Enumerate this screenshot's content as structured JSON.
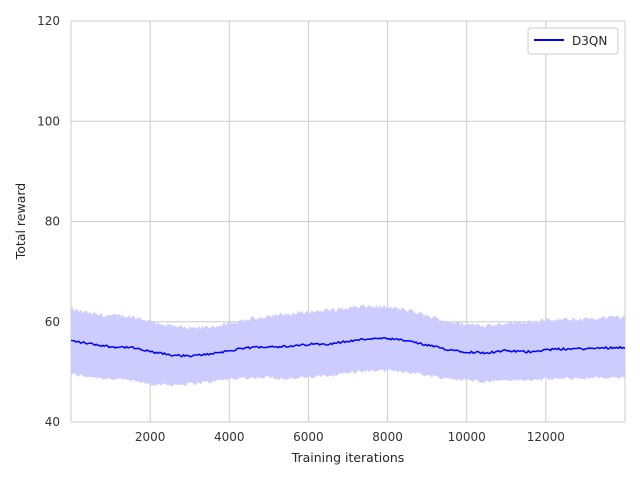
{
  "chart_data": {
    "type": "line",
    "xlabel": "Training iterations",
    "ylabel": "Total reward",
    "xlim": [
      0,
      14000
    ],
    "ylim": [
      40,
      120
    ],
    "xticks": [
      2000,
      4000,
      6000,
      8000,
      10000,
      12000
    ],
    "yticks": [
      40,
      60,
      80,
      100,
      120
    ],
    "grid": true,
    "legend_position": "top-right",
    "series": [
      {
        "name": "D3QN",
        "color": "#0000ff",
        "band_color": "#ccccff",
        "x": [
          0,
          500,
          1000,
          1500,
          2000,
          2500,
          3000,
          3500,
          4000,
          4500,
          5000,
          5500,
          6000,
          6500,
          7000,
          7500,
          8000,
          8500,
          9000,
          9500,
          10000,
          10500,
          11000,
          11500,
          12000,
          12500,
          13000,
          13500,
          14000
        ],
        "mean": [
          56.2,
          55.6,
          55.0,
          54.9,
          54.0,
          53.4,
          53.1,
          53.6,
          54.2,
          54.8,
          55.1,
          55.0,
          55.5,
          55.6,
          56.1,
          56.6,
          56.6,
          56.2,
          55.3,
          54.5,
          54.0,
          53.8,
          54.2,
          54.0,
          54.4,
          54.6,
          54.6,
          54.8,
          54.9
        ],
        "upper": [
          62.5,
          61.6,
          61.2,
          61.1,
          60.2,
          59.2,
          58.6,
          59.0,
          59.5,
          60.5,
          61.2,
          61.5,
          62.0,
          62.3,
          62.7,
          63.1,
          62.9,
          62.3,
          61.2,
          60.1,
          59.5,
          59.3,
          59.8,
          60.0,
          60.3,
          60.4,
          60.6,
          60.8,
          60.9
        ],
        "lower": [
          49.5,
          49.0,
          48.6,
          48.3,
          47.6,
          47.4,
          47.6,
          48.0,
          48.6,
          48.8,
          48.9,
          48.6,
          48.9,
          49.2,
          49.8,
          50.2,
          50.2,
          50.0,
          49.3,
          48.7,
          48.3,
          48.1,
          48.4,
          48.3,
          48.5,
          48.7,
          48.7,
          48.8,
          48.9
        ]
      }
    ]
  }
}
